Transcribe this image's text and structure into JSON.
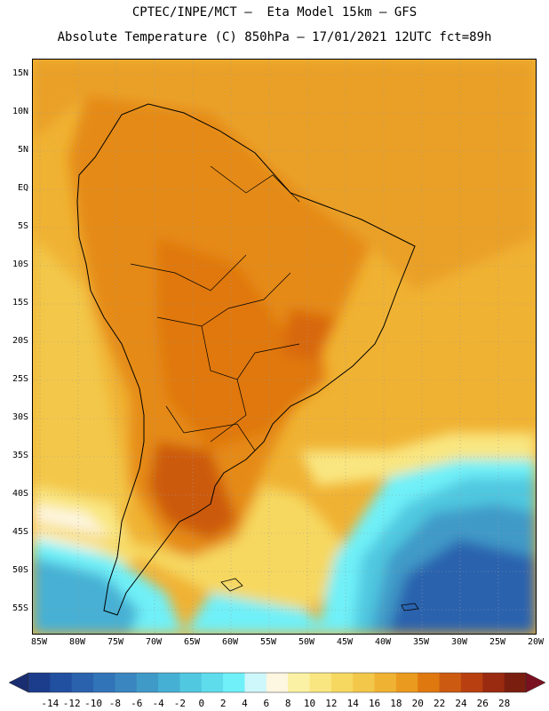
{
  "title_line1": "CPTEC/INPE/MCT –  Eta Model 15km – GFS",
  "title_line2": "Absolute Temperature (C) 850hPa – 17/01/2021 12UTC fct=89h",
  "lat_ticks": [
    "15N",
    "10N",
    "5N",
    "EQ",
    "5S",
    "10S",
    "15S",
    "20S",
    "25S",
    "30S",
    "35S",
    "40S",
    "45S",
    "50S",
    "55S"
  ],
  "lon_ticks": [
    "85W",
    "80W",
    "75W",
    "70W",
    "65W",
    "60W",
    "55W",
    "50W",
    "45W",
    "40W",
    "35W",
    "30W",
    "25W",
    "20W"
  ],
  "colorbar": {
    "labels": [
      "-14",
      "-12",
      "-10",
      "-8",
      "-6",
      "-4",
      "-2",
      "0",
      "2",
      "4",
      "6",
      "8",
      "10",
      "12",
      "14",
      "16",
      "18",
      "20",
      "22",
      "24",
      "26",
      "28"
    ],
    "colors": [
      "#1c3d8c",
      "#2250a0",
      "#2a62ae",
      "#3274b8",
      "#3a86c0",
      "#3f9ac8",
      "#46b0d4",
      "#50c8e0",
      "#5edcec",
      "#70f0f8",
      "#cdf7fb",
      "#fdf6e0",
      "#fbf1a4",
      "#f9e680",
      "#f6d860",
      "#f3c74a",
      "#f0b233",
      "#ea9a1e",
      "#e07810",
      "#cc5a10",
      "#b84010",
      "#9a2a10",
      "#7a1e10"
    ],
    "low_arrow_color": "#1a2d70",
    "high_arrow_color": "#7a1020"
  }
}
